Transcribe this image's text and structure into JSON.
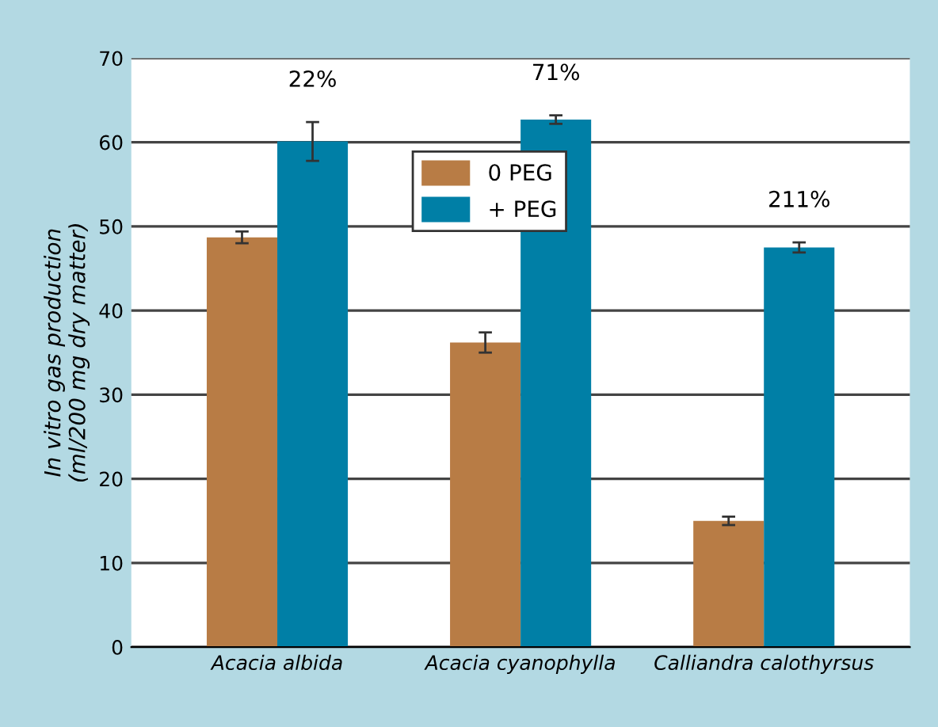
{
  "chart_data": {
    "type": "bar",
    "ylabel": "In vitro gas production\n(ml/200 mg dry matter)",
    "categories": [
      "Acacia albida",
      "Acacia cyanophylla",
      "Calliandra calothyrsus"
    ],
    "series": [
      {
        "name": "0 PEG",
        "color": "#b87c45",
        "values": [
          48.7,
          36.2,
          15.0
        ],
        "errors": [
          0.7,
          1.2,
          0.5
        ]
      },
      {
        "name": "+ PEG",
        "color": "#007fa6",
        "values": [
          60.1,
          62.7,
          47.5
        ],
        "errors": [
          2.3,
          0.5,
          0.6
        ]
      }
    ],
    "ylim": [
      0,
      70
    ],
    "yticks": [
      0,
      10,
      20,
      30,
      40,
      50,
      60,
      70
    ],
    "grid": "y",
    "legend": "top",
    "annotations": [
      "22%",
      "71%",
      "211%"
    ]
  }
}
